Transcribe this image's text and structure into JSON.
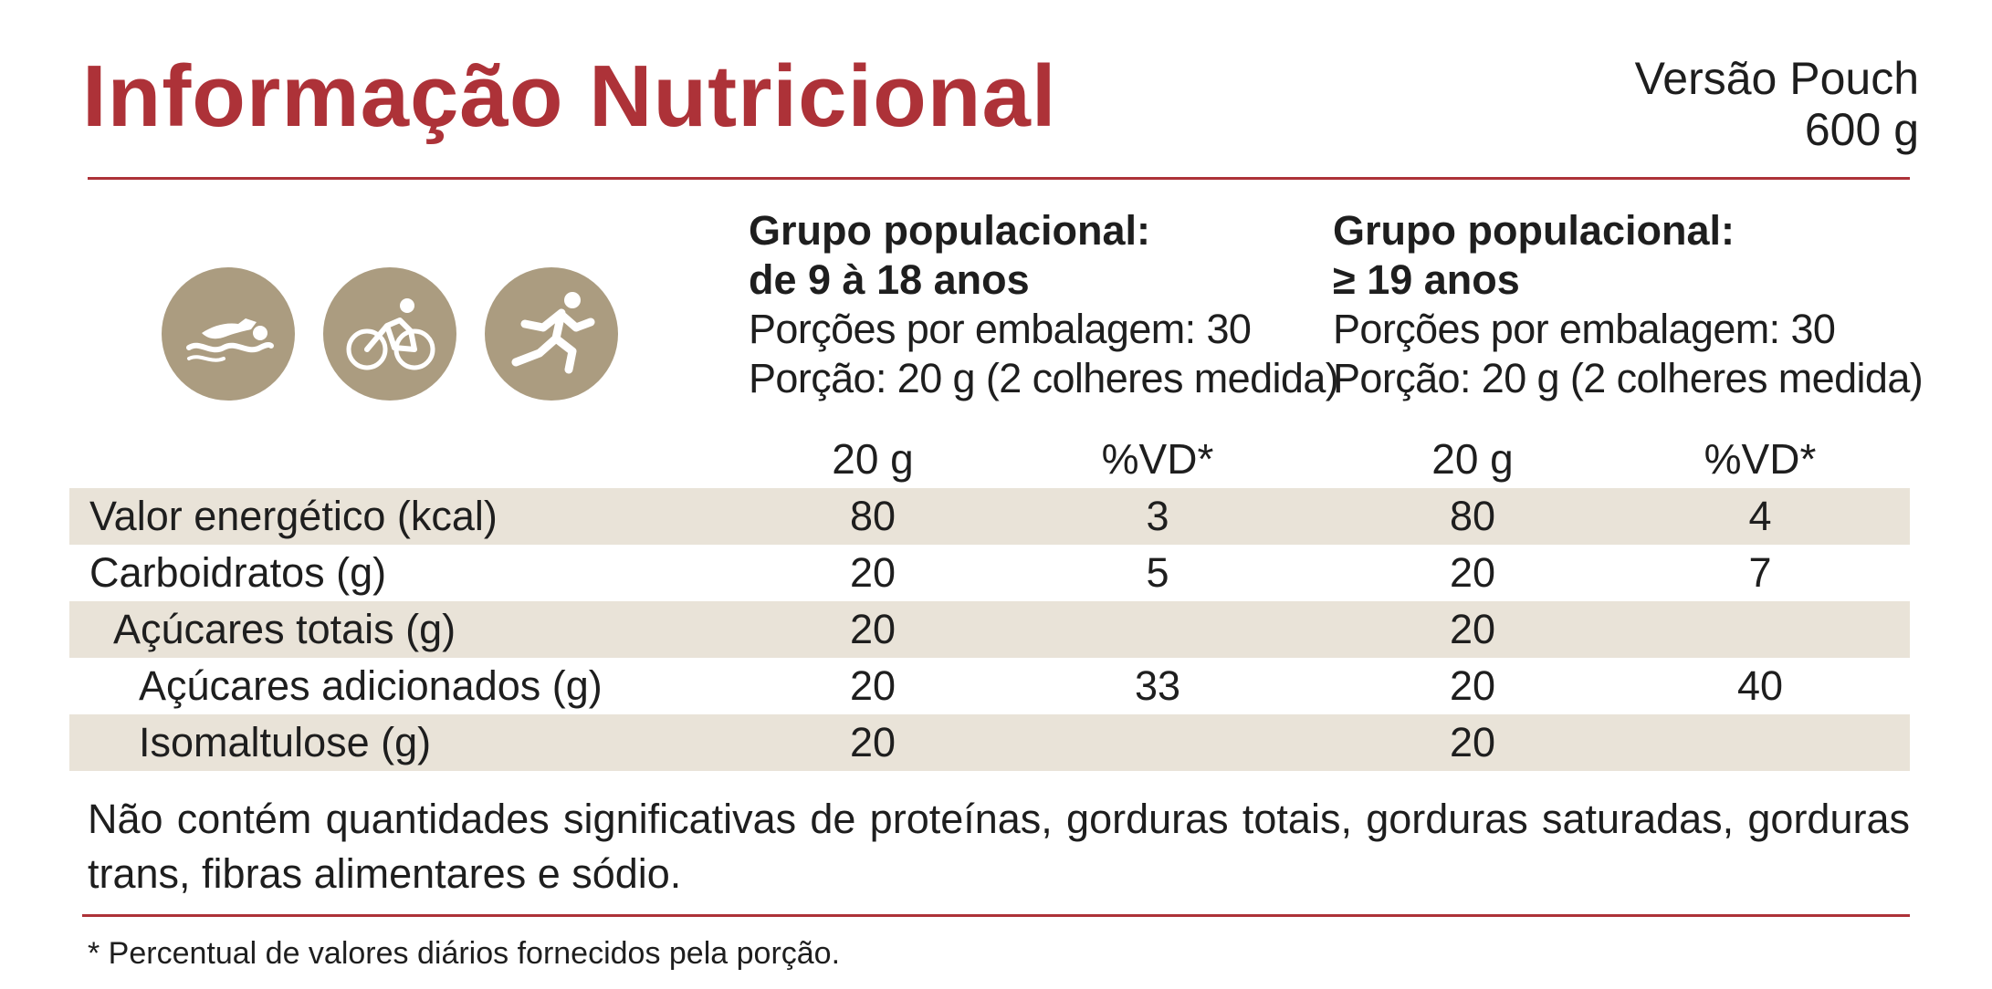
{
  "header": {
    "title": "Informação Nutricional",
    "version_line1": "Versão Pouch",
    "version_line2": "600 g"
  },
  "icons": [
    "swimming-icon",
    "cycling-icon",
    "running-icon"
  ],
  "groups": [
    {
      "title": "Grupo populacional:",
      "age": "de 9 à 18 anos",
      "servings": "Porções por embalagem: 30",
      "portion": "Porção: 20 g (2 colheres medida)"
    },
    {
      "title": "Grupo populacional:",
      "age": "≥ 19 anos",
      "servings": "Porções por embalagem: 30",
      "portion": "Porção: 20 g (2 colheres medida)"
    }
  ],
  "columns": [
    "20 g",
    "%VD*",
    "20 g",
    "%VD*"
  ],
  "rows": [
    {
      "label": "Valor energético (kcal)",
      "values": [
        "80",
        "3",
        "80",
        "4"
      ]
    },
    {
      "label": "Carboidratos (g)",
      "values": [
        "20",
        "5",
        "20",
        "7"
      ]
    },
    {
      "label": "Açúcares totais (g)",
      "values": [
        "20",
        "",
        "20",
        ""
      ]
    },
    {
      "label": "Açúcares adicionados (g)",
      "values": [
        "20",
        "33",
        "20",
        "40"
      ]
    },
    {
      "label": "Isomaltulose (g)",
      "values": [
        "20",
        "",
        "20",
        ""
      ]
    }
  ],
  "note": "Não contém quantidades significativas de proteínas, gorduras totais, gorduras saturadas, gorduras trans, fibras alimentares e sódio.",
  "footnote": "* Percentual de valores diários fornecidos pela porção.",
  "colors": {
    "accent": "#ad3238",
    "icon_bg": "#ab9c80",
    "row_shade": "#e9e3d8",
    "text": "#1e1e1e"
  }
}
